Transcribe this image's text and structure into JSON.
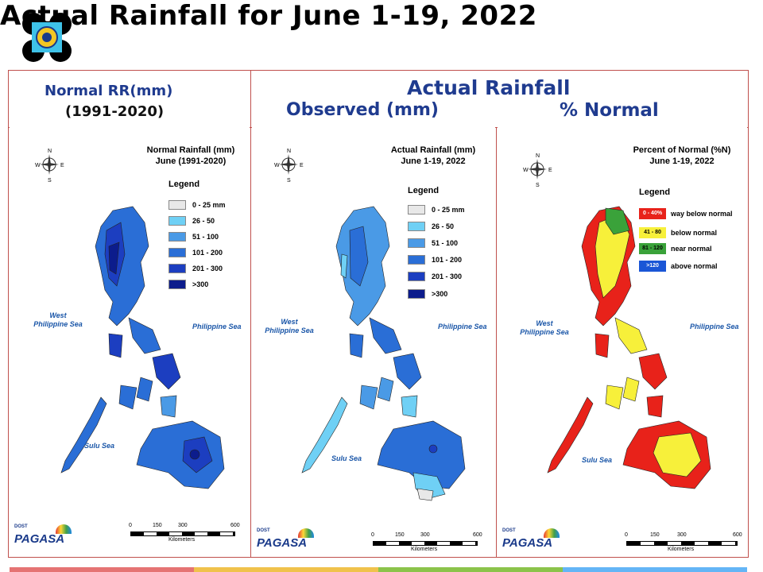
{
  "title": "Actual Rainfall for June 1-19, 2022",
  "headers": {
    "normal_line1": "Normal RR(mm)",
    "normal_line2": "(1991-2020)",
    "actual": "Actual Rainfall",
    "observed": "Observed (mm)",
    "percent": "% Normal"
  },
  "panels": [
    {
      "title_line1": "Normal Rainfall (mm)",
      "title_line2": "June (1991-2020)",
      "legend_title": "Legend",
      "legend": [
        {
          "label": "0 - 25 mm",
          "color": "#e8e8e8"
        },
        {
          "label": "26 - 50",
          "color": "#6fd0f5"
        },
        {
          "label": "51 - 100",
          "color": "#4a9ae6"
        },
        {
          "label": "101 - 200",
          "color": "#2a6ed6"
        },
        {
          "label": "201 - 300",
          "color": "#1c3ec0"
        },
        {
          "label": ">300",
          "color": "#0c1c8c"
        }
      ],
      "sea_west_1": "West",
      "sea_west_2": "Philippine Sea",
      "sea_east": "Philippine Sea",
      "sea_south": "Sulu Sea"
    },
    {
      "title_line1": "Actual Rainfall (mm)",
      "title_line2": "June 1-19, 2022",
      "legend_title": "Legend",
      "legend": [
        {
          "label": "0 - 25 mm",
          "color": "#e8e8e8"
        },
        {
          "label": "26 - 50",
          "color": "#6fd0f5"
        },
        {
          "label": "51 - 100",
          "color": "#4a9ae6"
        },
        {
          "label": "101 - 200",
          "color": "#2a6ed6"
        },
        {
          "label": "201 - 300",
          "color": "#1c3ec0"
        },
        {
          "label": ">300",
          "color": "#0c1c8c"
        }
      ],
      "sea_west_1": "West",
      "sea_west_2": "Philippine Sea",
      "sea_east": "Philippine Sea",
      "sea_south": "Sulu Sea"
    },
    {
      "title_line1": "Percent of Normal (%N)",
      "title_line2": "June 1-19, 2022",
      "legend_title": "Legend",
      "legend": [
        {
          "label": "way below normal",
          "range": "0 - 40%",
          "color": "#e8221a"
        },
        {
          "label": "below normal",
          "range": "41 - 80",
          "color": "#f7f03a"
        },
        {
          "label": "near normal",
          "range": "81 - 120",
          "color": "#3aa23a"
        },
        {
          "label": "above normal",
          "range": ">120",
          "color": "#1a56d6"
        }
      ],
      "sea_west_1": "West",
      "sea_west_2": "Philippine Sea",
      "sea_east": "Philippine Sea",
      "sea_south": "Sulu Sea"
    }
  ],
  "scale": {
    "ticks": [
      "0",
      "150",
      "300",
      "600"
    ],
    "unit": "Kilometers"
  },
  "compass": {
    "n": "N",
    "s": "S",
    "e": "E",
    "w": "W"
  },
  "logo": {
    "org_small": "DOST",
    "org_name": "PAGASA"
  },
  "footer_colors": [
    "#e57373",
    "#f0c24b",
    "#8bc34a",
    "#64b5f6"
  ]
}
